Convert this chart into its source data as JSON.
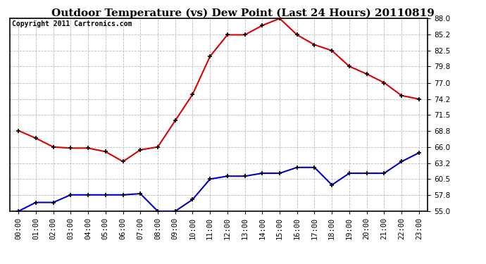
{
  "title": "Outdoor Temperature (vs) Dew Point (Last 24 Hours) 20110819",
  "copyright": "Copyright 2011 Cartronics.com",
  "x_labels": [
    "00:00",
    "01:00",
    "02:00",
    "03:00",
    "04:00",
    "05:00",
    "06:00",
    "07:00",
    "08:00",
    "09:00",
    "10:00",
    "11:00",
    "12:00",
    "13:00",
    "14:00",
    "15:00",
    "16:00",
    "17:00",
    "18:00",
    "19:00",
    "20:00",
    "21:00",
    "22:00",
    "23:00"
  ],
  "temp_data": [
    68.8,
    67.5,
    66.0,
    65.8,
    65.8,
    65.2,
    63.5,
    65.5,
    66.0,
    70.5,
    75.0,
    81.5,
    85.2,
    85.2,
    86.8,
    88.0,
    85.2,
    83.5,
    82.5,
    79.8,
    78.5,
    77.0,
    74.8,
    74.2
  ],
  "dew_data": [
    55.0,
    56.5,
    56.5,
    57.8,
    57.8,
    57.8,
    57.8,
    58.0,
    55.0,
    55.0,
    57.0,
    60.5,
    61.0,
    61.0,
    61.5,
    61.5,
    62.5,
    62.5,
    59.5,
    61.5,
    61.5,
    61.5,
    63.5,
    65.0
  ],
  "ylim": [
    55.0,
    88.0
  ],
  "yticks": [
    55.0,
    57.8,
    60.5,
    63.2,
    66.0,
    68.8,
    71.5,
    74.2,
    77.0,
    79.8,
    82.5,
    85.2,
    88.0
  ],
  "temp_color": "#dd0000",
  "dew_color": "#0000cc",
  "bg_color": "#ffffff",
  "plot_bg": "#ffffff",
  "grid_color": "#bbbbbb",
  "title_fontsize": 11,
  "copyright_fontsize": 7,
  "tick_fontsize": 7.5
}
